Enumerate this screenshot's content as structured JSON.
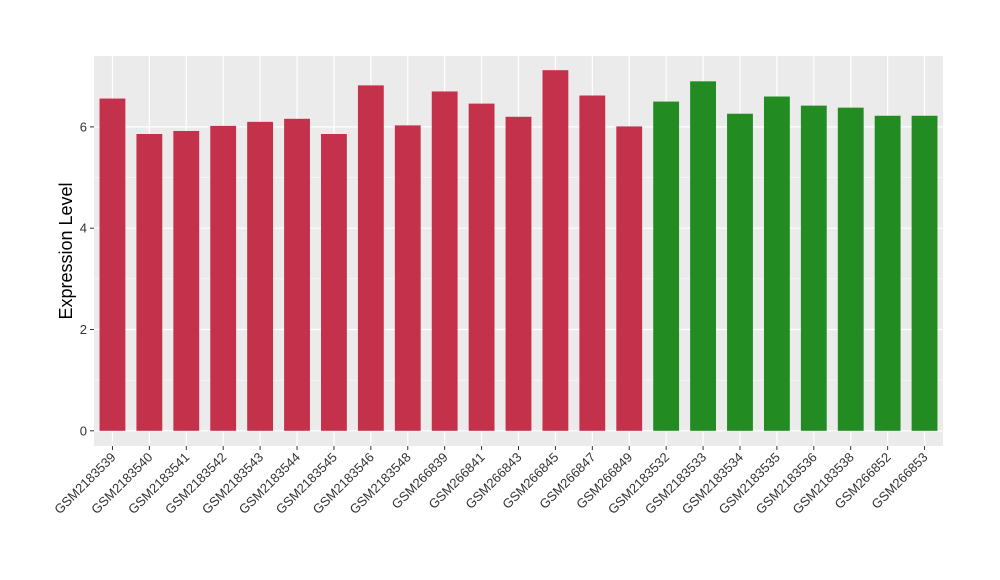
{
  "chart_data": {
    "type": "bar",
    "title": "",
    "xlabel": "",
    "ylabel": "Expression Level",
    "ylim": [
      -0.3,
      7.4
    ],
    "yticks": [
      0,
      2,
      4,
      6
    ],
    "grid": true,
    "legend": "none",
    "colors": {
      "red": "#C4314B",
      "green": "#228B22",
      "panel": "#EBEBEB",
      "grid": "#FFFFFF"
    },
    "categories": [
      "GSM2183539",
      "GSM2183540",
      "GSM2183541",
      "GSM2183542",
      "GSM2183543",
      "GSM2183544",
      "GSM2183545",
      "GSM2183546",
      "GSM2183548",
      "GSM266839",
      "GSM266841",
      "GSM266843",
      "GSM266845",
      "GSM266847",
      "GSM266849",
      "GSM2183532",
      "GSM2183533",
      "GSM2183534",
      "GSM2183535",
      "GSM2183536",
      "GSM2183538",
      "GSM266852",
      "GSM266853"
    ],
    "values": [
      6.56,
      5.86,
      5.92,
      6.02,
      6.1,
      6.16,
      5.86,
      6.82,
      6.03,
      6.7,
      6.46,
      6.2,
      7.12,
      6.62,
      6.01,
      6.5,
      6.9,
      6.26,
      6.6,
      6.42,
      6.38,
      6.22,
      6.22
    ],
    "bar_colors": [
      "red",
      "red",
      "red",
      "red",
      "red",
      "red",
      "red",
      "red",
      "red",
      "red",
      "red",
      "red",
      "red",
      "red",
      "red",
      "green",
      "green",
      "green",
      "green",
      "green",
      "green",
      "green",
      "green"
    ]
  }
}
